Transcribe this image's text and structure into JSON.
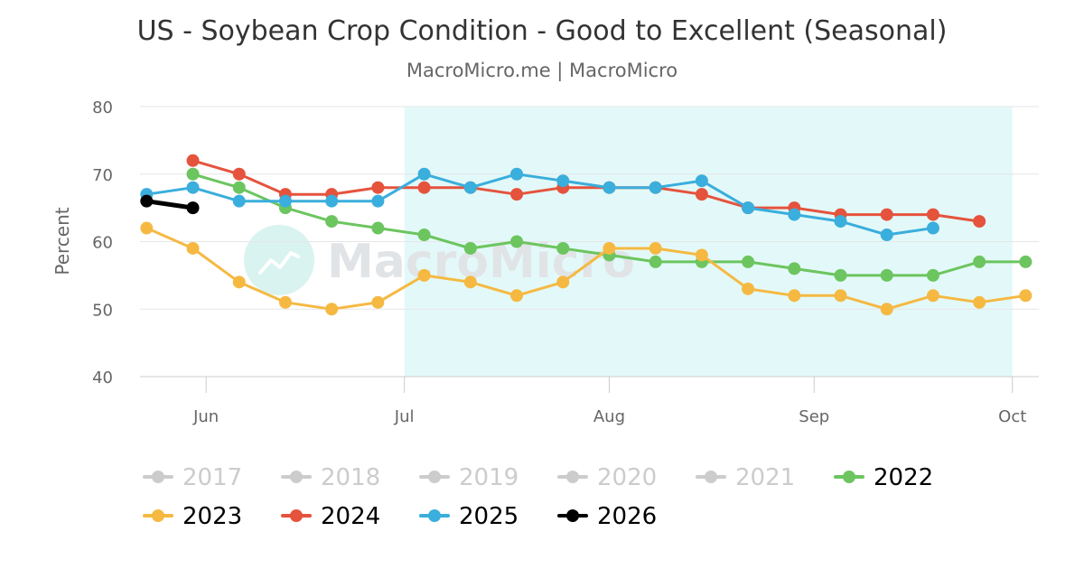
{
  "title": "US - Soybean Crop Condition - Good to Excellent (Seasonal)",
  "subtitle": "MacroMicro.me | MacroMicro",
  "watermark": "MacroMicro",
  "chart_data": {
    "type": "line",
    "title": "US - Soybean Crop Condition - Good to Excellent (Seasonal)",
    "subtitle": "MacroMicro.me | MacroMicro",
    "ylabel": "Percent",
    "xlabel": "",
    "ylim": [
      40,
      80
    ],
    "yticks": [
      40,
      50,
      60,
      70,
      80
    ],
    "xlim": [
      "05-22",
      "10-05"
    ],
    "xticks": [
      {
        "label": "Jun",
        "date": "06-01"
      },
      {
        "label": "Jul",
        "date": "07-01"
      },
      {
        "label": "Aug",
        "date": "08-01"
      },
      {
        "label": "Sep",
        "date": "09-01"
      },
      {
        "label": "Oct",
        "date": "10-01"
      }
    ],
    "shaded_band": {
      "from": "07-01",
      "to": "10-01",
      "color": "#e3f9f9"
    },
    "grid": true,
    "legend_position": "bottom",
    "series": [
      {
        "name": "2017",
        "color": "#cccccc",
        "hidden": true,
        "points": []
      },
      {
        "name": "2018",
        "color": "#cccccc",
        "hidden": true,
        "points": []
      },
      {
        "name": "2019",
        "color": "#cccccc",
        "hidden": true,
        "points": []
      },
      {
        "name": "2020",
        "color": "#cccccc",
        "hidden": true,
        "points": []
      },
      {
        "name": "2021",
        "color": "#cccccc",
        "hidden": true,
        "points": []
      },
      {
        "name": "2022",
        "color": "#6cc55f",
        "hidden": false,
        "points": [
          [
            "05-30",
            70
          ],
          [
            "06-06",
            68
          ],
          [
            "06-13",
            65
          ],
          [
            "06-20",
            63
          ],
          [
            "06-27",
            62
          ],
          [
            "07-04",
            61
          ],
          [
            "07-11",
            59
          ],
          [
            "07-18",
            60
          ],
          [
            "07-25",
            59
          ],
          [
            "08-01",
            58
          ],
          [
            "08-08",
            57
          ],
          [
            "08-15",
            57
          ],
          [
            "08-22",
            57
          ],
          [
            "08-29",
            56
          ],
          [
            "09-05",
            55
          ],
          [
            "09-12",
            55
          ],
          [
            "09-19",
            55
          ],
          [
            "09-26",
            57
          ],
          [
            "10-03",
            57
          ]
        ]
      },
      {
        "name": "2023",
        "color": "#f5b942",
        "hidden": false,
        "points": [
          [
            "05-23",
            62
          ],
          [
            "05-30",
            59
          ],
          [
            "06-06",
            54
          ],
          [
            "06-13",
            51
          ],
          [
            "06-20",
            50
          ],
          [
            "06-27",
            51
          ],
          [
            "07-04",
            55
          ],
          [
            "07-11",
            54
          ],
          [
            "07-18",
            52
          ],
          [
            "07-25",
            54
          ],
          [
            "08-01",
            59
          ],
          [
            "08-08",
            59
          ],
          [
            "08-15",
            58
          ],
          [
            "08-22",
            53
          ],
          [
            "08-29",
            52
          ],
          [
            "09-05",
            52
          ],
          [
            "09-12",
            50
          ],
          [
            "09-19",
            52
          ],
          [
            "09-26",
            51
          ],
          [
            "10-03",
            52
          ]
        ]
      },
      {
        "name": "2024",
        "color": "#e5533d",
        "hidden": false,
        "points": [
          [
            "05-30",
            72
          ],
          [
            "06-06",
            70
          ],
          [
            "06-13",
            67
          ],
          [
            "06-20",
            67
          ],
          [
            "06-27",
            68
          ],
          [
            "07-04",
            68
          ],
          [
            "07-11",
            68
          ],
          [
            "07-18",
            67
          ],
          [
            "07-25",
            68
          ],
          [
            "08-01",
            68
          ],
          [
            "08-08",
            68
          ],
          [
            "08-15",
            67
          ],
          [
            "08-22",
            65
          ],
          [
            "08-29",
            65
          ],
          [
            "09-05",
            64
          ],
          [
            "09-12",
            64
          ],
          [
            "09-19",
            64
          ],
          [
            "09-26",
            63
          ]
        ]
      },
      {
        "name": "2025",
        "color": "#3aaedc",
        "hidden": false,
        "points": [
          [
            "05-23",
            67
          ],
          [
            "05-30",
            68
          ],
          [
            "06-06",
            66
          ],
          [
            "06-13",
            66
          ],
          [
            "06-20",
            66
          ],
          [
            "06-27",
            66
          ],
          [
            "07-04",
            70
          ],
          [
            "07-11",
            68
          ],
          [
            "07-18",
            70
          ],
          [
            "07-25",
            69
          ],
          [
            "08-01",
            68
          ],
          [
            "08-08",
            68
          ],
          [
            "08-15",
            69
          ],
          [
            "08-22",
            65
          ],
          [
            "08-29",
            64
          ],
          [
            "09-05",
            63
          ],
          [
            "09-12",
            61
          ],
          [
            "09-19",
            62
          ]
        ]
      },
      {
        "name": "2026",
        "color": "#000000",
        "hidden": false,
        "points": [
          [
            "05-23",
            66
          ],
          [
            "05-30",
            65
          ]
        ]
      }
    ]
  }
}
